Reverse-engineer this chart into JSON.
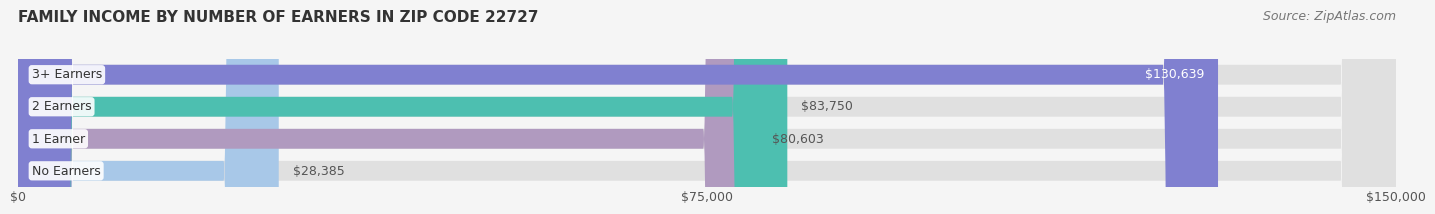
{
  "title": "FAMILY INCOME BY NUMBER OF EARNERS IN ZIP CODE 22727",
  "source": "Source: ZipAtlas.com",
  "categories": [
    "No Earners",
    "1 Earner",
    "2 Earners",
    "3+ Earners"
  ],
  "values": [
    28385,
    80603,
    83750,
    130639
  ],
  "bar_colors": [
    "#a8c8e8",
    "#b09abf",
    "#4dbfb0",
    "#8080d0"
  ],
  "label_colors": [
    "#555555",
    "#555555",
    "#555555",
    "#ffffff"
  ],
  "xlim": [
    0,
    150000
  ],
  "xticks": [
    0,
    75000,
    150000
  ],
  "xtick_labels": [
    "$0",
    "$75,000",
    "$150,000"
  ],
  "bg_color": "#f5f5f5",
  "bar_bg_color": "#e0e0e0",
  "title_fontsize": 11,
  "source_fontsize": 9,
  "label_fontsize": 9,
  "tick_fontsize": 9
}
